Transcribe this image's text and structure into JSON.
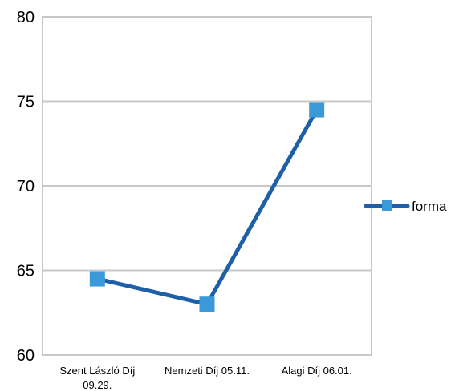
{
  "chart_data": {
    "type": "line",
    "categories": [
      [
        "Szent László Díj",
        "09.29."
      ],
      [
        "Nemzeti Díj 05.11."
      ],
      [
        "Alagi Díj 06.01."
      ]
    ],
    "series": [
      {
        "name": "forma",
        "values": [
          64.5,
          63,
          74.5
        ]
      }
    ],
    "ylim": [
      60,
      80
    ],
    "yticks": [
      "60",
      "65",
      "70",
      "75",
      "80"
    ],
    "grid": true,
    "legend_position": "right",
    "colors": {
      "line": "#1f5fa8",
      "marker": "#3a9ad9",
      "grid": "#c8c8c8",
      "frame": "#c8c8c8"
    }
  }
}
